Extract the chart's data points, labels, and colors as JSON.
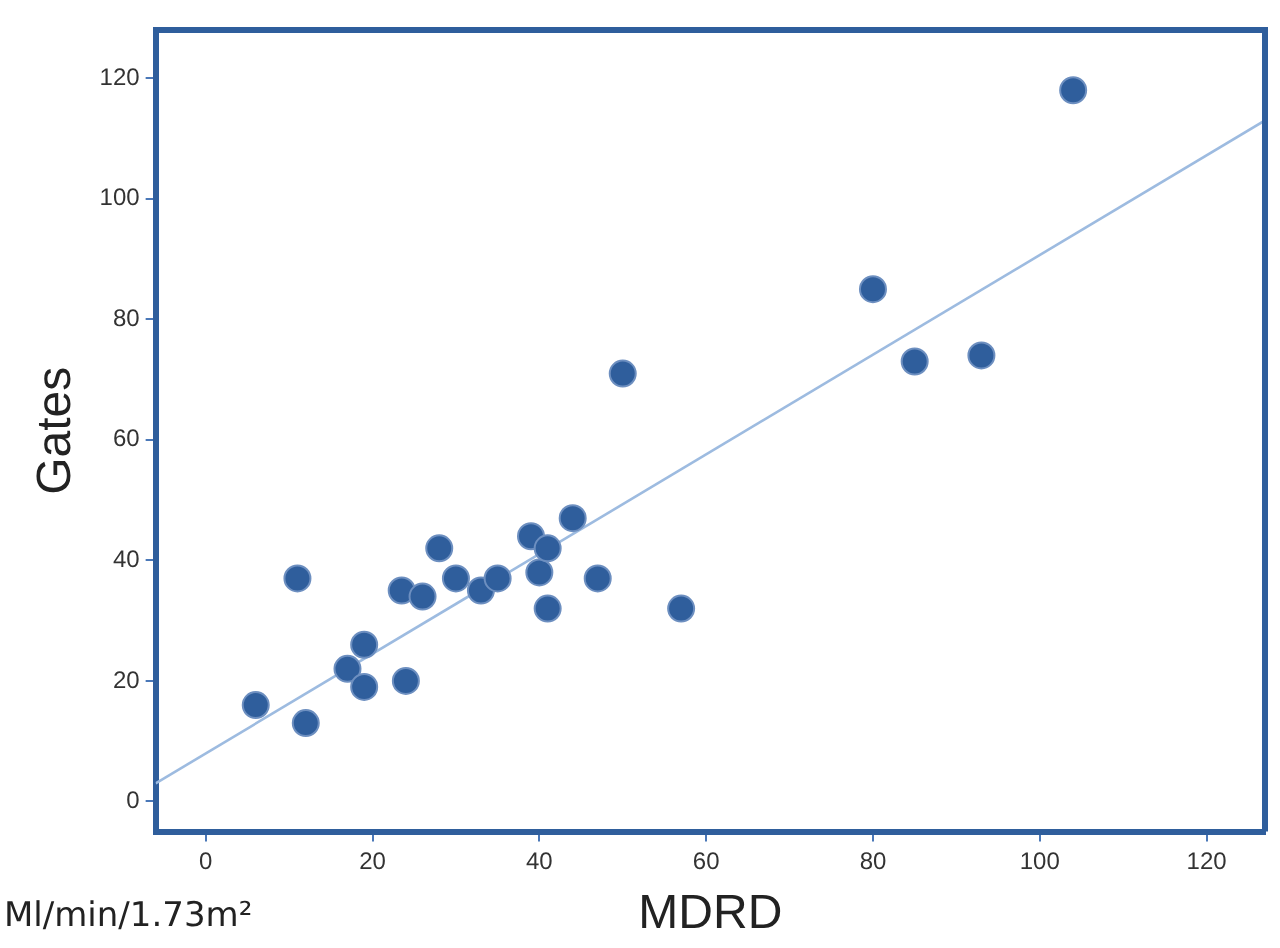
{
  "chart_data": {
    "type": "scatter",
    "xlabel": "MDRD",
    "ylabel": "Gates",
    "annotations": [
      "Ml/min/1.73m²"
    ],
    "xlim": [
      -6,
      127
    ],
    "ylim": [
      -5,
      128
    ],
    "xticks": [
      0,
      20,
      40,
      60,
      80,
      100,
      120
    ],
    "yticks": [
      0,
      20,
      40,
      60,
      80,
      100,
      120
    ],
    "grid": false,
    "legend": false,
    "marker": "circle",
    "series": [
      {
        "color": "#2f5e9c",
        "x": [
          6,
          12,
          11,
          17,
          19,
          19,
          24,
          23.5,
          26,
          28,
          30,
          33,
          35,
          39,
          40,
          41,
          41,
          44,
          47,
          50,
          57,
          80,
          85,
          93,
          104
        ],
        "values": [
          16,
          13,
          37,
          22,
          26,
          19,
          20,
          35,
          34,
          42,
          37,
          35,
          37,
          44,
          38,
          42,
          32,
          47,
          37,
          71,
          32,
          85,
          73,
          74,
          118
        ]
      },
      {
        "type": "line",
        "color": "#9dbbe0",
        "x": [
          -6,
          127
        ],
        "values": [
          3,
          113
        ],
        "line_style": "solid",
        "marker": "none"
      }
    ]
  }
}
